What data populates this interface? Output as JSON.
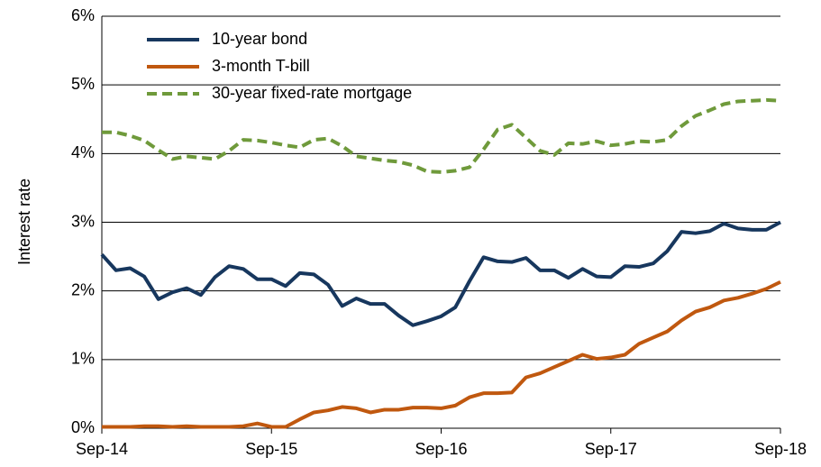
{
  "chart_data": {
    "type": "line",
    "y_label": "Interest rate",
    "categories": [
      "Sep-14",
      null,
      null,
      null,
      null,
      null,
      null,
      null,
      null,
      null,
      null,
      null,
      "Sep-15",
      null,
      null,
      null,
      null,
      null,
      null,
      null,
      null,
      null,
      null,
      null,
      "Sep-16",
      null,
      null,
      null,
      null,
      null,
      null,
      null,
      null,
      null,
      null,
      null,
      "Sep-17",
      null,
      null,
      null,
      null,
      null,
      null,
      null,
      null,
      null,
      null,
      null,
      "Sep-18"
    ],
    "series": [
      {
        "name": "10-year bond",
        "color": "#17375e",
        "dash": false,
        "values": [
          2.53,
          2.3,
          2.33,
          2.21,
          1.88,
          1.98,
          2.04,
          1.94,
          2.2,
          2.36,
          2.32,
          2.17,
          2.17,
          2.07,
          2.26,
          2.24,
          2.09,
          1.78,
          1.89,
          1.81,
          1.81,
          1.64,
          1.5,
          1.56,
          1.63,
          1.76,
          2.14,
          2.49,
          2.43,
          2.42,
          2.48,
          2.3,
          2.3,
          2.19,
          2.32,
          2.21,
          2.2,
          2.36,
          2.35,
          2.4,
          2.58,
          2.86,
          2.84,
          2.87,
          2.98,
          2.91,
          2.89,
          2.89,
          3.0
        ]
      },
      {
        "name": "3-month T-bill",
        "color": "#c0580f",
        "dash": false,
        "values": [
          0.02,
          0.02,
          0.02,
          0.03,
          0.03,
          0.02,
          0.03,
          0.02,
          0.02,
          0.02,
          0.03,
          0.07,
          0.02,
          0.02,
          0.13,
          0.23,
          0.26,
          0.31,
          0.29,
          0.23,
          0.27,
          0.27,
          0.3,
          0.3,
          0.29,
          0.33,
          0.45,
          0.51,
          0.51,
          0.52,
          0.74,
          0.8,
          0.89,
          0.98,
          1.07,
          1.01,
          1.03,
          1.07,
          1.23,
          1.32,
          1.41,
          1.57,
          1.7,
          1.76,
          1.86,
          1.9,
          1.96,
          2.03,
          2.13
        ]
      },
      {
        "name": "30-year fixed-rate mortgage",
        "color": "#6f9a3b",
        "dash": true,
        "values": [
          4.31,
          4.31,
          4.26,
          4.19,
          4.05,
          3.92,
          3.96,
          3.94,
          3.92,
          4.04,
          4.2,
          4.19,
          4.16,
          4.12,
          4.09,
          4.2,
          4.22,
          4.11,
          3.96,
          3.93,
          3.9,
          3.88,
          3.83,
          3.74,
          3.73,
          3.75,
          3.8,
          4.06,
          4.35,
          4.42,
          4.23,
          4.04,
          3.98,
          4.15,
          4.14,
          4.18,
          4.12,
          4.14,
          4.18,
          4.17,
          4.2,
          4.4,
          4.55,
          4.63,
          4.72,
          4.76,
          4.77,
          4.78,
          4.77
        ]
      }
    ],
    "ylim": [
      0,
      6
    ],
    "yticks": [
      {
        "value": 0,
        "label": "0%"
      },
      {
        "value": 1,
        "label": "1%"
      },
      {
        "value": 2,
        "label": "2%"
      },
      {
        "value": 3,
        "label": "3%"
      },
      {
        "value": 4,
        "label": "4%"
      },
      {
        "value": 5,
        "label": "5%"
      },
      {
        "value": 6,
        "label": "6%"
      }
    ],
    "grid": true,
    "legend": "upper left"
  }
}
